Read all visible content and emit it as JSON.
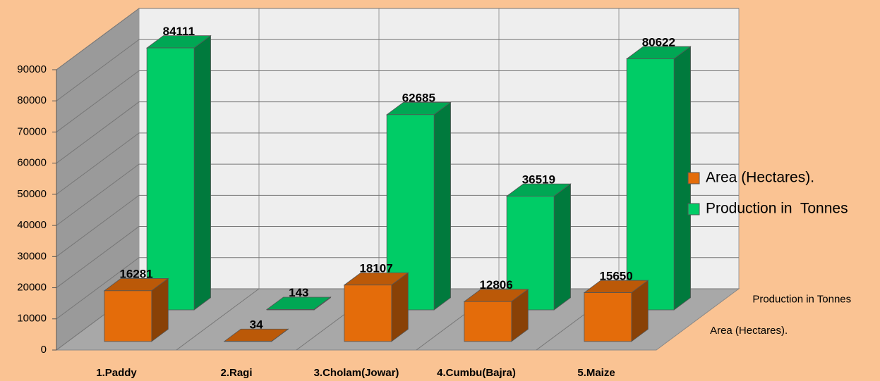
{
  "chart_data": {
    "type": "bar3d",
    "categories": [
      "1.Paddy",
      "2.Ragi",
      "3.Cholam(Jowar)",
      "4.Cumbu(Bajra)",
      "5.Maize"
    ],
    "series": [
      {
        "name": "Area (Hectares).",
        "color": "#e46c0a",
        "values": [
          16281,
          34,
          18107,
          12806,
          15650
        ]
      },
      {
        "name": "Production in  Tonnes",
        "color": "#00cc66",
        "values": [
          84111,
          143,
          62685,
          36519,
          80622
        ]
      }
    ],
    "ylim": [
      0,
      90000
    ],
    "yticks": [
      0,
      10000,
      20000,
      30000,
      40000,
      50000,
      60000,
      70000,
      80000,
      90000
    ],
    "grid": true,
    "legend": "right"
  }
}
